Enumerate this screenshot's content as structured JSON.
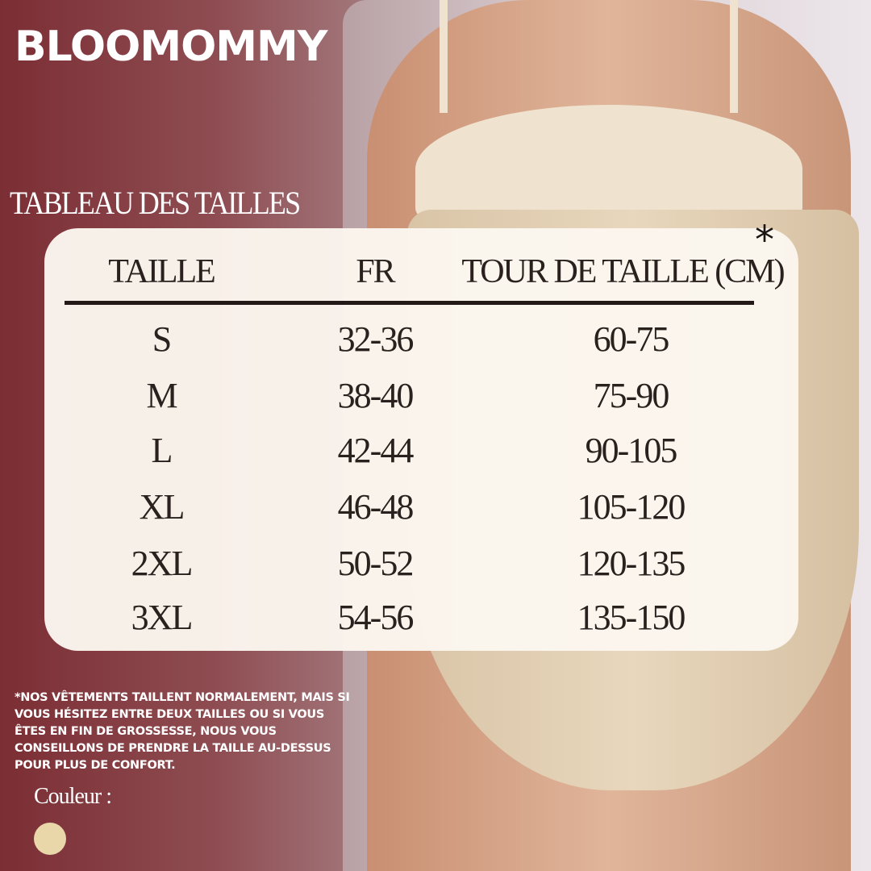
{
  "brand": "BLOOMOMMY",
  "subtitle": "TABLEAU DES TAILLES",
  "table": {
    "asterisk": "*",
    "headers": [
      "TAILLE",
      "FR",
      "TOUR DE TAILLE (CM)"
    ],
    "rows": [
      [
        "S",
        "32-36",
        "60-75"
      ],
      [
        "M",
        "38-40",
        "75-90"
      ],
      [
        "L",
        "42-44",
        "90-105"
      ],
      [
        "XL",
        "46-48",
        "105-120"
      ],
      [
        "2XL",
        "50-52",
        "120-135"
      ],
      [
        "3XL",
        "54-56",
        "135-150"
      ]
    ]
  },
  "note": "*NOS VÊTEMENTS TAILLENT NORMALEMENT, MAIS SI VOUS HÉSITEZ ENTRE DEUX TAILLES OU SI VOUS ÊTES EN FIN DE GROSSESSE, NOUS VOUS CONSEILLONS DE PRENDRE LA TAILLE AU-DESSUS POUR PLUS DE CONFORT.",
  "color_label": "Couleur :",
  "colors": {
    "swatch": "#e9d7a9",
    "background": "#7b2e34",
    "card": "#fbf6ee",
    "text": "#2a201e"
  }
}
